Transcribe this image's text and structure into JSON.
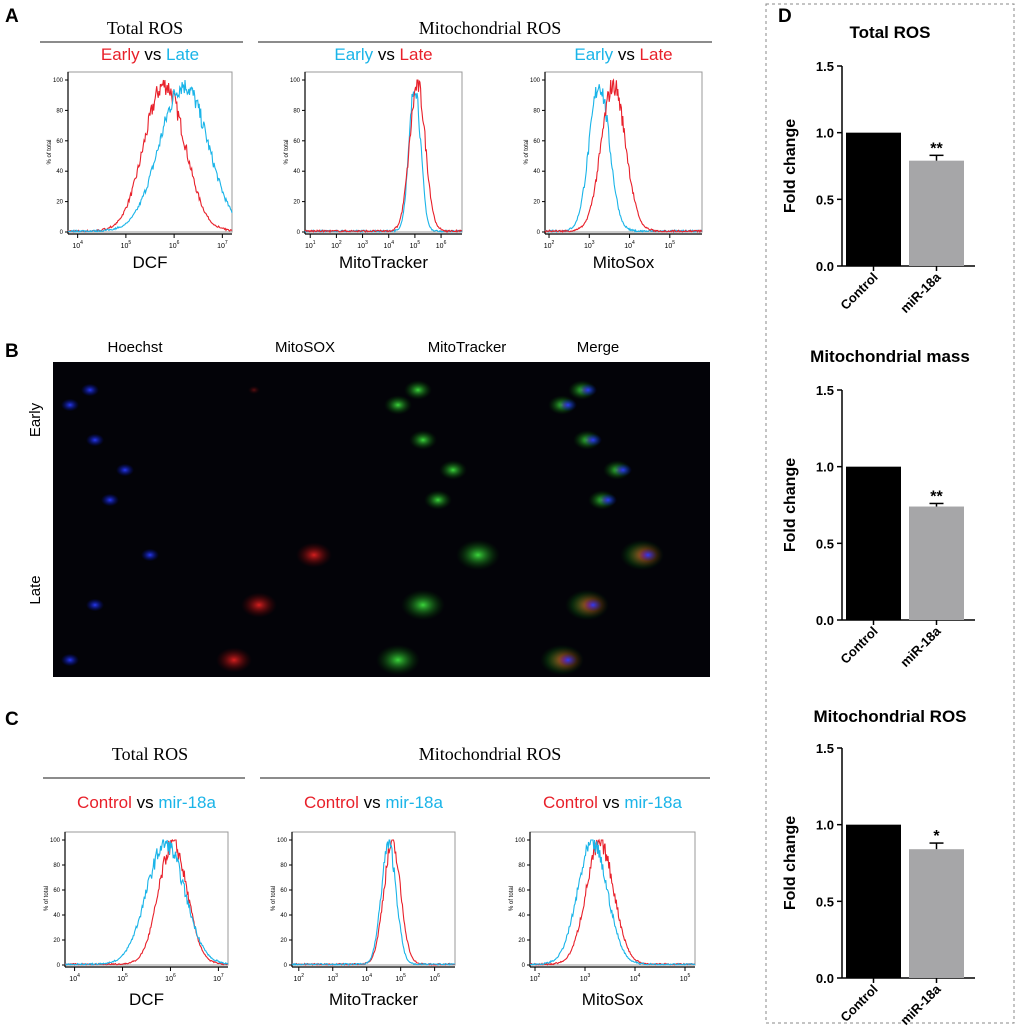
{
  "colors": {
    "red": "#e8202a",
    "cyan": "#1ab4e8",
    "black": "#000000",
    "gray": "#a6a6a8"
  },
  "panelA": {
    "label": "A",
    "group_total": "Total ROS",
    "group_mito": "Mitochondrial ROS"
  },
  "panelB": {
    "label": "B",
    "columns": [
      "Hoechst",
      "MitoSOX",
      "MitoTracker",
      "Merge"
    ],
    "rows": [
      "Early",
      "Late"
    ]
  },
  "panelC": {
    "label": "C",
    "group_total": "Total ROS",
    "group_mito": "Mitochondrial ROS"
  },
  "panelD": {
    "label": "D"
  },
  "chart_data": [
    {
      "id": "A1",
      "type": "line",
      "panel": "A",
      "title_parts": [
        {
          "text": "Early",
          "color": "red"
        },
        {
          "text": " vs ",
          "color": "black"
        },
        {
          "text": "Late",
          "color": "cyan"
        }
      ],
      "xlabel": "DCF",
      "ylabel": "% of total",
      "xscale": "log",
      "xlim": [
        3.8,
        7.2
      ],
      "xticks": [
        4,
        5,
        6,
        7
      ],
      "ylim": [
        0,
        100
      ],
      "yticks": [
        0,
        20,
        40,
        60,
        80,
        100
      ],
      "series": [
        {
          "name": "Early",
          "color": "red",
          "peak_log10": 5.8,
          "sd_log10": 0.42
        },
        {
          "name": "Late",
          "color": "cyan",
          "peak_log10": 6.2,
          "sd_log10": 0.5
        }
      ]
    },
    {
      "id": "A2",
      "type": "line",
      "panel": "A",
      "title_parts": [
        {
          "text": "Early",
          "color": "cyan"
        },
        {
          "text": " vs ",
          "color": "black"
        },
        {
          "text": "Late",
          "color": "red"
        }
      ],
      "xlabel": "MitoTracker",
      "ylabel": "% of total",
      "xscale": "log",
      "xlim": [
        0.8,
        6.8
      ],
      "xticks": [
        1,
        2,
        3,
        4,
        5,
        6
      ],
      "ylim": [
        0,
        100
      ],
      "yticks": [
        0,
        20,
        40,
        60,
        80,
        100
      ],
      "series": [
        {
          "name": "Early",
          "color": "cyan",
          "peak_log10": 5.0,
          "sd_log10": 0.22
        },
        {
          "name": "Late",
          "color": "red",
          "peak_log10": 5.1,
          "sd_log10": 0.3
        }
      ]
    },
    {
      "id": "A3",
      "type": "line",
      "panel": "A",
      "title_parts": [
        {
          "text": "Early",
          "color": "cyan"
        },
        {
          "text": " vs ",
          "color": "black"
        },
        {
          "text": "Late",
          "color": "red"
        }
      ],
      "xlabel": "MitoSox",
      "ylabel": "% of total",
      "xscale": "log",
      "xlim": [
        1.9,
        5.8
      ],
      "xticks": [
        2,
        3,
        4,
        5
      ],
      "ylim": [
        0,
        100
      ],
      "yticks": [
        0,
        20,
        40,
        60,
        80,
        100
      ],
      "series": [
        {
          "name": "Early",
          "color": "cyan",
          "peak_log10": 3.25,
          "sd_log10": 0.25
        },
        {
          "name": "Late",
          "color": "red",
          "peak_log10": 3.6,
          "sd_log10": 0.3
        }
      ]
    },
    {
      "id": "C1",
      "type": "line",
      "panel": "C",
      "title_parts": [
        {
          "text": "Control",
          "color": "red"
        },
        {
          "text": " vs ",
          "color": "black"
        },
        {
          "text": "mir-18a",
          "color": "cyan"
        }
      ],
      "xlabel": "DCF",
      "ylabel": "% of total",
      "xscale": "log",
      "xlim": [
        3.8,
        7.2
      ],
      "xticks": [
        4,
        5,
        6,
        7
      ],
      "ylim": [
        0,
        100
      ],
      "yticks": [
        0,
        20,
        40,
        60,
        80,
        100
      ],
      "series": [
        {
          "name": "Control",
          "color": "red",
          "peak_log10": 6.05,
          "sd_log10": 0.3
        },
        {
          "name": "mir-18a",
          "color": "cyan",
          "peak_log10": 5.9,
          "sd_log10": 0.4
        }
      ]
    },
    {
      "id": "C2",
      "type": "line",
      "panel": "C",
      "title_parts": [
        {
          "text": "Control",
          "color": "red"
        },
        {
          "text": " vs ",
          "color": "black"
        },
        {
          "text": "mir-18a",
          "color": "cyan"
        }
      ],
      "xlabel": "MitoTracker",
      "ylabel": "% of total",
      "xscale": "log",
      "xlim": [
        1.8,
        6.6
      ],
      "xticks": [
        2,
        3,
        4,
        5,
        6
      ],
      "ylim": [
        0,
        100
      ],
      "yticks": [
        0,
        20,
        40,
        60,
        80,
        100
      ],
      "series": [
        {
          "name": "Control",
          "color": "red",
          "peak_log10": 4.75,
          "sd_log10": 0.25
        },
        {
          "name": "mir-18a",
          "color": "cyan",
          "peak_log10": 4.65,
          "sd_log10": 0.22
        }
      ]
    },
    {
      "id": "C3",
      "type": "line",
      "panel": "C",
      "title_parts": [
        {
          "text": "Control",
          "color": "red"
        },
        {
          "text": " vs ",
          "color": "black"
        },
        {
          "text": "mir-18a",
          "color": "cyan"
        }
      ],
      "xlabel": "MitoSox",
      "ylabel": "% of total",
      "xscale": "log",
      "xlim": [
        1.9,
        5.2
      ],
      "xticks": [
        2,
        3,
        4,
        5
      ],
      "ylim": [
        0,
        100
      ],
      "yticks": [
        0,
        20,
        40,
        60,
        80,
        100
      ],
      "series": [
        {
          "name": "Control",
          "color": "red",
          "peak_log10": 3.3,
          "sd_log10": 0.28
        },
        {
          "name": "mir-18a",
          "color": "cyan",
          "peak_log10": 3.15,
          "sd_log10": 0.3
        }
      ]
    },
    {
      "id": "D1",
      "type": "bar",
      "panel": "D",
      "title": "Total ROS",
      "ylabel": "Fold change",
      "categories": [
        "Control",
        "miR-18a"
      ],
      "values": [
        1.0,
        0.79
      ],
      "errors": [
        0,
        0.04
      ],
      "significance": [
        "",
        "**"
      ],
      "bar_colors": [
        "black",
        "gray"
      ],
      "ylim": [
        0,
        1.5
      ],
      "yticks": [
        "0.0",
        "0.5",
        "1.0",
        "1.5"
      ]
    },
    {
      "id": "D2",
      "type": "bar",
      "panel": "D",
      "title": "Mitochondrial mass",
      "ylabel": "Fold change",
      "categories": [
        "Control",
        "miR-18a"
      ],
      "values": [
        1.0,
        0.74
      ],
      "errors": [
        0,
        0.02
      ],
      "significance": [
        "",
        "**"
      ],
      "bar_colors": [
        "black",
        "gray"
      ],
      "ylim": [
        0,
        1.5
      ],
      "yticks": [
        "0.0",
        "0.5",
        "1.0",
        "1.5"
      ]
    },
    {
      "id": "D3",
      "type": "bar",
      "panel": "D",
      "title": "Mitochondrial ROS",
      "ylabel": "Fold change",
      "categories": [
        "Control",
        "miR-18a"
      ],
      "values": [
        1.0,
        0.84
      ],
      "errors": [
        0,
        0.04
      ],
      "significance": [
        "",
        "*"
      ],
      "bar_colors": [
        "black",
        "gray"
      ],
      "ylim": [
        0,
        1.5
      ],
      "yticks": [
        "0.0",
        "0.5",
        "1.0",
        "1.5"
      ]
    }
  ]
}
